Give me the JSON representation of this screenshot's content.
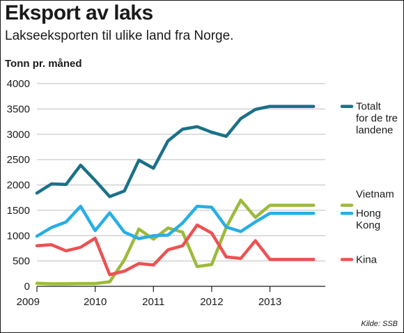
{
  "header": {
    "title": "Eksport av laks",
    "subtitle": "Lakseeksporten til ulike land fra Norge.",
    "unit": "Tonn pr. måned"
  },
  "source": "Kilde: SSB",
  "colors": {
    "total": "#1a7188",
    "vietnam": "#9cba3b",
    "hongkong": "#27aee5",
    "kina": "#ec5253",
    "grid": "#bdbdbd",
    "axis": "#1a1a1a"
  },
  "chart_data": {
    "type": "line",
    "title": "Eksport av laks",
    "subtitle": "Lakseeksporten til ulike land fra Norge.",
    "ylabel": "Tonn pr. måned",
    "xlabel": "",
    "ylim": [
      0,
      4000
    ],
    "yticks": [
      0,
      500,
      1000,
      1500,
      2000,
      2500,
      3000,
      3500,
      4000
    ],
    "xlim": [
      2009.0,
      2013.95
    ],
    "xticks": [
      2009,
      2010,
      2011,
      2012,
      2013
    ],
    "grid": "horizontal",
    "legend": "direct labels right",
    "series": [
      {
        "name": "Totalt for de tre landene",
        "label_lines": [
          "Totalt",
          "for de tre",
          "landene"
        ],
        "color_key": "total",
        "x": [
          2009.0,
          2009.25,
          2009.5,
          2009.75,
          2010.0,
          2010.25,
          2010.5,
          2010.75,
          2011.0,
          2011.25,
          2011.5,
          2011.75,
          2012.0,
          2012.25,
          2012.5,
          2012.75,
          2013.0,
          2013.25,
          2013.5,
          2013.75
        ],
        "y": [
          1840,
          2020,
          2010,
          2390,
          2090,
          1770,
          1880,
          2490,
          2330,
          2870,
          3100,
          3150,
          3040,
          2960,
          3310,
          3490,
          3550,
          3550,
          3550,
          3550
        ]
      },
      {
        "name": "Vietnam",
        "label_lines": [
          "Vietnam"
        ],
        "color_key": "vietnam",
        "x": [
          2009.0,
          2009.25,
          2009.5,
          2009.75,
          2010.0,
          2010.25,
          2010.5,
          2010.75,
          2011.0,
          2011.25,
          2011.5,
          2011.75,
          2012.0,
          2012.25,
          2012.5,
          2012.75,
          2013.0,
          2013.25,
          2013.5,
          2013.75
        ],
        "y": [
          60,
          50,
          50,
          55,
          55,
          90,
          520,
          1130,
          930,
          1150,
          1070,
          390,
          430,
          1160,
          1700,
          1360,
          1600,
          1600,
          1600,
          1600
        ]
      },
      {
        "name": "Hong Kong",
        "label_lines": [
          "Hong",
          "Kong"
        ],
        "color_key": "hongkong",
        "x": [
          2009.0,
          2009.25,
          2009.5,
          2009.75,
          2010.0,
          2010.25,
          2010.5,
          2010.75,
          2011.0,
          2011.25,
          2011.5,
          2011.75,
          2012.0,
          2012.25,
          2012.5,
          2012.75,
          2013.0,
          2013.25,
          2013.5,
          2013.75
        ],
        "y": [
          990,
          1160,
          1270,
          1580,
          1100,
          1450,
          1070,
          940,
          1000,
          1010,
          1250,
          1580,
          1560,
          1170,
          1080,
          1270,
          1440,
          1440,
          1440,
          1440
        ]
      },
      {
        "name": "Kina",
        "label_lines": [
          "Kina"
        ],
        "color_key": "kina",
        "x": [
          2009.0,
          2009.25,
          2009.5,
          2009.75,
          2010.0,
          2010.25,
          2010.5,
          2010.75,
          2011.0,
          2011.25,
          2011.5,
          2011.75,
          2012.0,
          2012.25,
          2012.5,
          2012.75,
          2013.0,
          2013.25,
          2013.5,
          2013.75
        ],
        "y": [
          800,
          820,
          700,
          770,
          950,
          230,
          300,
          450,
          420,
          720,
          800,
          1210,
          1050,
          580,
          550,
          900,
          530,
          530,
          530,
          530
        ]
      }
    ]
  }
}
